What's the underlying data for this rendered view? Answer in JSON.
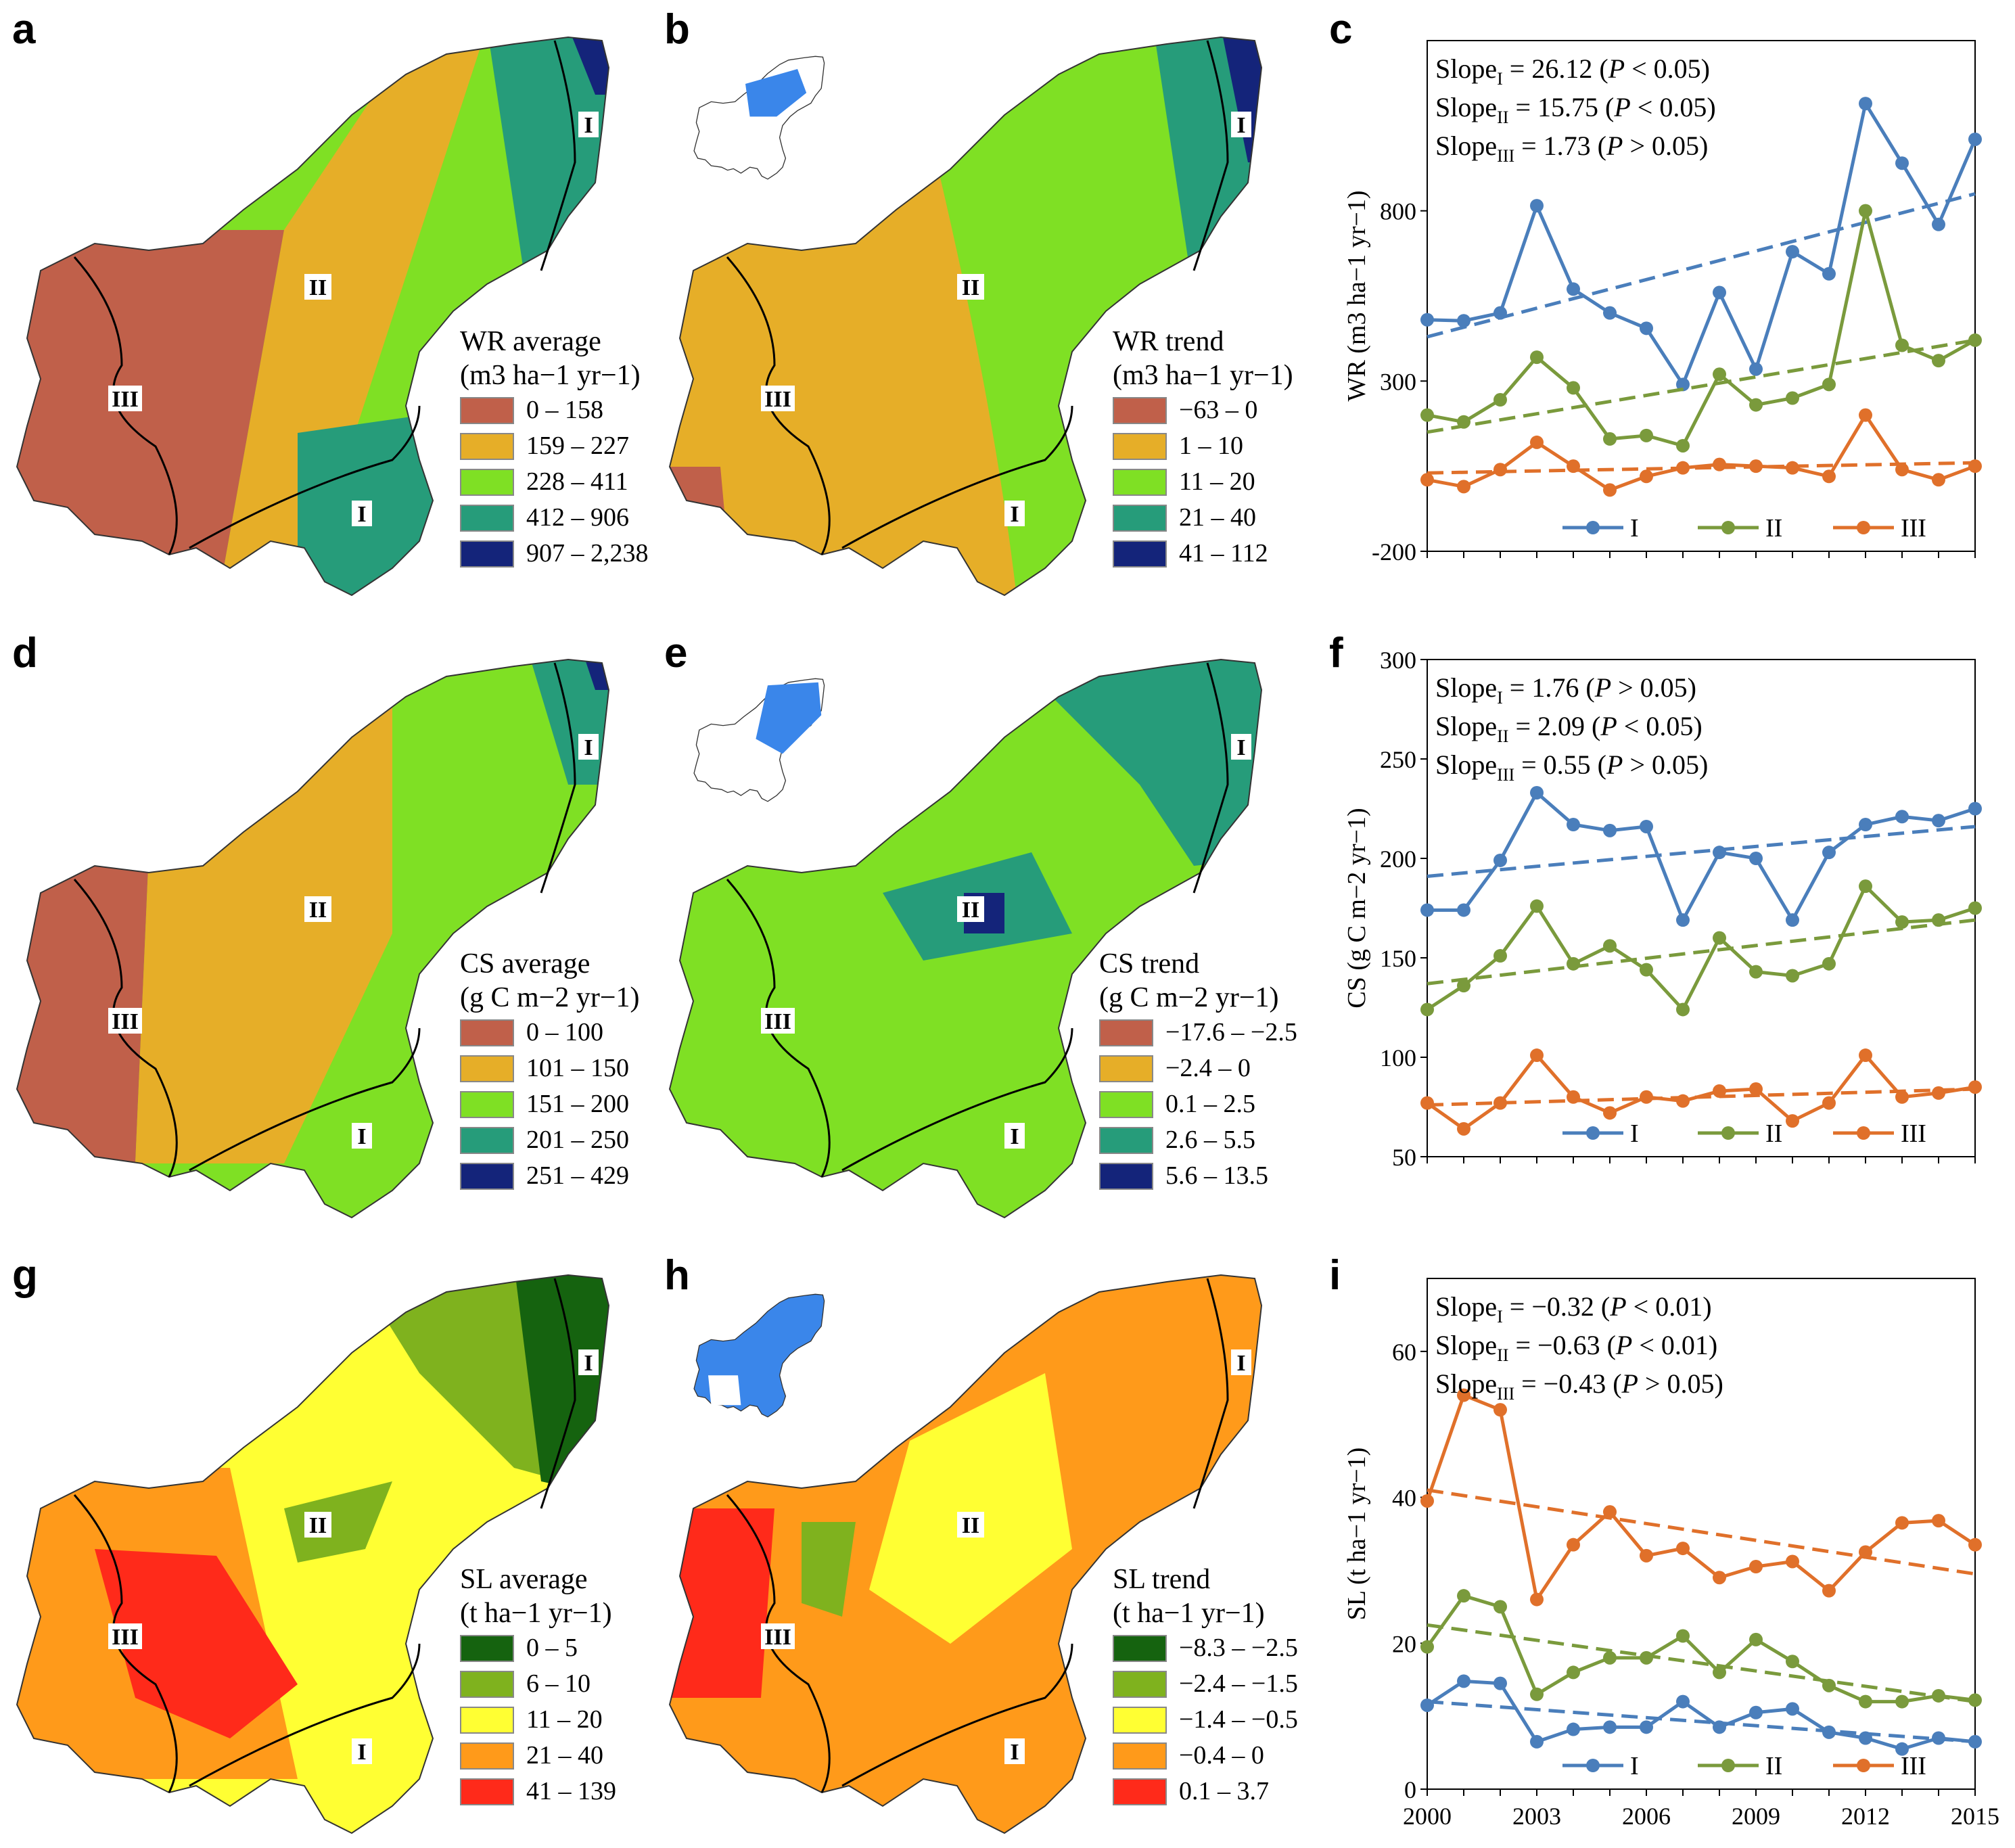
{
  "panels": {
    "a": {
      "letter": "a",
      "legend_title": "WR average",
      "legend_units": "(m3 ha−1 yr−1)",
      "classes": [
        {
          "label": "0 – 158",
          "color": "#c0604a"
        },
        {
          "label": "159 – 227",
          "color": "#e6ae28"
        },
        {
          "label": "228 – 411",
          "color": "#7fe024"
        },
        {
          "label": "412 – 906",
          "color": "#269c7a"
        },
        {
          "label": "907 – 2,238",
          "color": "#14247a"
        }
      ]
    },
    "b": {
      "letter": "b",
      "legend_title": "WR trend",
      "legend_units": "(m3 ha−1 yr−1)",
      "classes": [
        {
          "label": "−63 – 0",
          "color": "#c0604a"
        },
        {
          "label": "1 – 10",
          "color": "#e6ae28"
        },
        {
          "label": "11 – 20",
          "color": "#7fe024"
        },
        {
          "label": "21 – 40",
          "color": "#269c7a"
        },
        {
          "label": "41 – 112",
          "color": "#14247a"
        }
      ]
    },
    "d": {
      "letter": "d",
      "legend_title": "CS average",
      "legend_units": "(g C m−2 yr−1)",
      "classes": [
        {
          "label": "0 – 100",
          "color": "#c0604a"
        },
        {
          "label": "101 – 150",
          "color": "#e6ae28"
        },
        {
          "label": "151 – 200",
          "color": "#7fe024"
        },
        {
          "label": "201 – 250",
          "color": "#269c7a"
        },
        {
          "label": "251 – 429",
          "color": "#14247a"
        }
      ]
    },
    "e": {
      "letter": "e",
      "legend_title": "CS trend",
      "legend_units": "(g C m−2 yr−1)",
      "classes": [
        {
          "label": "−17.6 – −2.5",
          "color": "#c0604a"
        },
        {
          "label": "−2.4 – 0",
          "color": "#e6ae28"
        },
        {
          "label": "0.1 – 2.5",
          "color": "#7fe024"
        },
        {
          "label": "2.6 – 5.5",
          "color": "#269c7a"
        },
        {
          "label": "5.6 – 13.5",
          "color": "#14247a"
        }
      ]
    },
    "g": {
      "letter": "g",
      "legend_title": "SL average",
      "legend_units": "(t ha−1 yr−1)",
      "classes": [
        {
          "label": "0 – 5",
          "color": "#15630f"
        },
        {
          "label": "6 – 10",
          "color": "#7fb21e"
        },
        {
          "label": "11 – 20",
          "color": "#ffff33"
        },
        {
          "label": "21 – 40",
          "color": "#ff9a1a"
        },
        {
          "label": "41 – 139",
          "color": "#ff2a1a"
        }
      ]
    },
    "h": {
      "letter": "h",
      "legend_title": "SL trend",
      "legend_units": "(t ha−1 yr−1)",
      "classes": [
        {
          "label": "−8.3 – −2.5",
          "color": "#15630f"
        },
        {
          "label": "−2.4 – −1.5",
          "color": "#7fb21e"
        },
        {
          "label": "−1.4 – −0.5",
          "color": "#ffff33"
        },
        {
          "label": "−0.4 – 0",
          "color": "#ff9a1a"
        },
        {
          "label": "0.1 – 3.7",
          "color": "#ff2a1a"
        }
      ]
    }
  },
  "region_labels": [
    "I",
    "II",
    "III"
  ],
  "colors": {
    "series_I": "#4a7ebb",
    "series_II": "#7a9a3c",
    "series_III": "#e0702a"
  },
  "chart_data": [
    {
      "panel": "c",
      "type": "line",
      "ylabel": "WR (m3 ha−1 yr−1)",
      "ylim": [
        -200,
        1300
      ],
      "yticks": [
        -200,
        300,
        800
      ],
      "x": [
        2000,
        2001,
        2002,
        2003,
        2004,
        2005,
        2006,
        2007,
        2008,
        2009,
        2010,
        2011,
        2012,
        2013,
        2014,
        2015
      ],
      "series": [
        {
          "name": "I",
          "values": [
            480,
            477,
            500,
            815,
            570,
            500,
            455,
            290,
            560,
            335,
            680,
            615,
            1115,
            940,
            760,
            1010
          ],
          "trend": [
            430,
            850
          ]
        },
        {
          "name": "II",
          "values": [
            200,
            180,
            245,
            370,
            280,
            130,
            140,
            110,
            320,
            230,
            250,
            290,
            800,
            405,
            360,
            420
          ],
          "trend": [
            150,
            420
          ]
        },
        {
          "name": "III",
          "values": [
            10,
            -10,
            40,
            120,
            50,
            -20,
            20,
            45,
            55,
            50,
            45,
            20,
            200,
            40,
            10,
            50
          ],
          "trend": [
            30,
            60
          ]
        }
      ],
      "annotations": [
        "Slope",
        "= 26.12 (",
        "P",
        " < 0.05)",
        "= 15.75 (",
        " < 0.05)",
        "= 1.73 (",
        " > 0.05)"
      ],
      "legend": [
        "I",
        "II",
        "III"
      ]
    },
    {
      "panel": "f",
      "type": "line",
      "ylabel": "CS (g C m−2 yr−1)",
      "ylim": [
        50,
        300
      ],
      "yticks": [
        50,
        100,
        150,
        200,
        250,
        300
      ],
      "x": [
        2000,
        2001,
        2002,
        2003,
        2004,
        2005,
        2006,
        2007,
        2008,
        2009,
        2010,
        2011,
        2012,
        2013,
        2014,
        2015
      ],
      "series": [
        {
          "name": "I",
          "values": [
            174,
            174,
            199,
            233,
            217,
            214,
            216,
            169,
            203,
            200,
            169,
            203,
            217,
            221,
            219,
            225
          ],
          "trend": [
            191,
            216
          ]
        },
        {
          "name": "II",
          "values": [
            124,
            136,
            151,
            176,
            147,
            156,
            144,
            124,
            160,
            143,
            141,
            147,
            186,
            168,
            169,
            175
          ],
          "trend": [
            137,
            169
          ]
        },
        {
          "name": "III",
          "values": [
            77,
            64,
            77,
            101,
            80,
            72,
            80,
            78,
            83,
            84,
            68,
            77,
            101,
            80,
            82,
            85
          ],
          "trend": [
            76,
            84
          ]
        }
      ],
      "annotations": [
        "= 1.76 (",
        " > 0.05)",
        "= 2.09 (",
        " < 0.05)",
        "= 0.55 (",
        " > 0.05)"
      ],
      "legend": [
        "I",
        "II",
        "III"
      ]
    },
    {
      "panel": "i",
      "type": "line",
      "ylabel": "SL (t ha−1 yr−1)",
      "ylim": [
        0,
        70
      ],
      "yticks": [
        0,
        20,
        40,
        60
      ],
      "x": [
        2000,
        2001,
        2002,
        2003,
        2004,
        2005,
        2006,
        2007,
        2008,
        2009,
        2010,
        2011,
        2012,
        2013,
        2014,
        2015
      ],
      "xticks": [
        2000,
        2003,
        2006,
        2009,
        2012,
        2015
      ],
      "series": [
        {
          "name": "I",
          "values": [
            11.5,
            14.8,
            14.5,
            6.5,
            8.2,
            8.5,
            8.5,
            12,
            8.5,
            10.5,
            11,
            7.8,
            7,
            5.5,
            7,
            6.5
          ],
          "trend": [
            12,
            6.5
          ]
        },
        {
          "name": "II",
          "values": [
            19.5,
            26.5,
            25,
            13,
            16,
            18,
            18,
            21,
            16,
            20.5,
            17.5,
            14.2,
            12,
            12,
            12.8,
            12.2
          ],
          "trend": [
            22.5,
            12
          ]
        },
        {
          "name": "III",
          "values": [
            39.5,
            54,
            52,
            26,
            33.5,
            38,
            32,
            33,
            29,
            30.5,
            31.2,
            27.2,
            32.5,
            36.5,
            36.8,
            33.5
          ],
          "trend": [
            41,
            29.5
          ]
        }
      ],
      "annotations": [
        "= −0.32  (",
        "  <  0.01)",
        "= −0.63  (",
        "= −0.43 (",
        " > 0.05)"
      ],
      "legend": [
        "I",
        "II",
        "III"
      ]
    }
  ]
}
